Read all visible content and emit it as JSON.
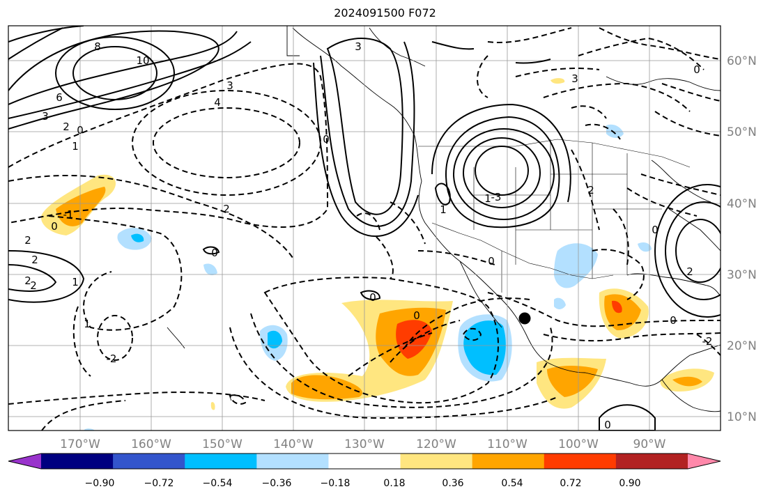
{
  "title": "2024091500 F072",
  "lon_labels": [
    "170°W",
    "160°W",
    "150°W",
    "140°W",
    "130°W",
    "120°W",
    "110°W",
    "100°W",
    "90°W"
  ],
  "lat_labels": [
    "60°N",
    "50°N",
    "40°N",
    "30°N",
    "20°N",
    "10°N"
  ],
  "contour_labels_solid": [
    "8",
    "10",
    "6",
    "3",
    "2",
    "4",
    "1",
    "3",
    "-3",
    "-1",
    "-2",
    "2"
  ],
  "contour_labels_dashed": [
    "0",
    "1",
    "2",
    "3",
    "4",
    "-1",
    "-2",
    "0",
    "2",
    "0",
    "0",
    "2",
    "3"
  ],
  "colorbar": {
    "ticks": [
      "−0.90",
      "−0.72",
      "−0.54",
      "−0.36",
      "−0.18",
      "0.18",
      "0.36",
      "0.54",
      "0.72",
      "0.90"
    ],
    "colors": [
      "#9933cc",
      "#000080",
      "#3355cc",
      "#00bfff",
      "#b3e0ff",
      "#ffffff",
      "#ffe680",
      "#ffa500",
      "#ff3c00",
      "#b22222",
      "#ff88aa"
    ]
  },
  "marker": {
    "label": "storm-center",
    "color": "#000000"
  }
}
